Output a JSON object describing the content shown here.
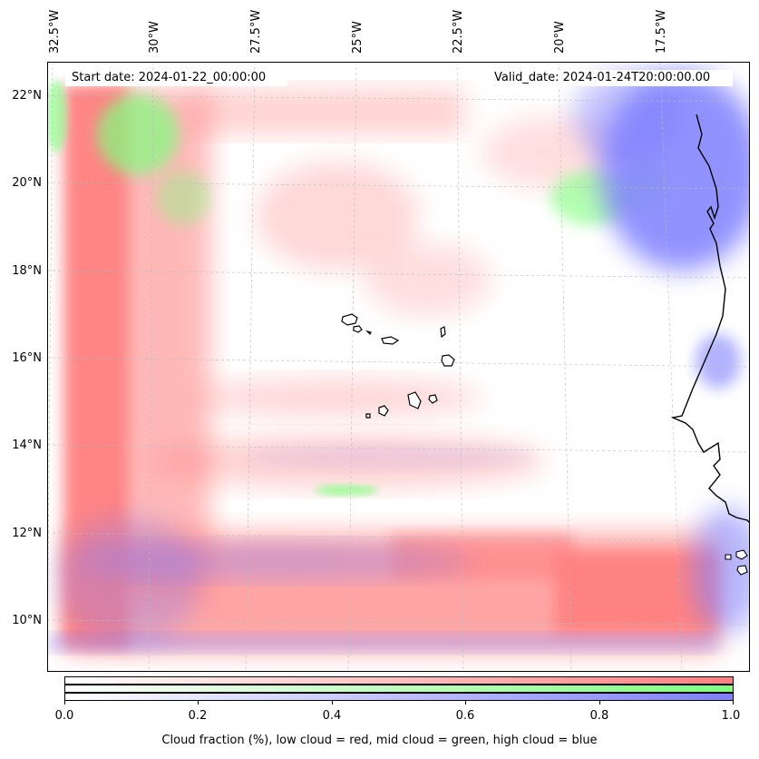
{
  "map": {
    "start_date": "Start date: 2024-01-22_00:00:00",
    "valid_date": "Valid_date: 2024-01-24T20:00:00.00",
    "lon_labels": [
      "32.5°W",
      "30°W",
      "27.5°W",
      "25°W",
      "22.5°W",
      "20°W",
      "17.5°W"
    ],
    "lat_labels": [
      "22°N",
      "20°N",
      "18°N",
      "16°N",
      "14°N",
      "12°N",
      "10°N"
    ],
    "layers": {
      "low_cloud_color": "#ff7f7f",
      "mid_cloud_color": "#7fff7f",
      "high_cloud_color": "#7f7fff"
    }
  },
  "colorbar": {
    "ticks": [
      "0.0",
      "0.2",
      "0.4",
      "0.6",
      "0.8",
      "1.0"
    ],
    "caption": "Cloud fraction (%), low cloud = red, mid cloud = green, high cloud = blue"
  }
}
